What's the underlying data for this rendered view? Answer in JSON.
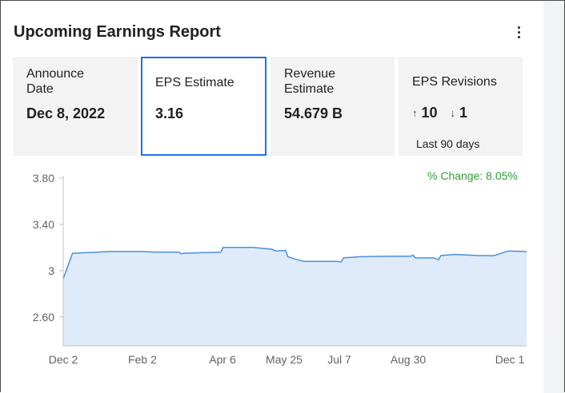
{
  "title": "Upcoming Earnings Report",
  "cards": {
    "announce": {
      "label": "Announce\nDate",
      "line1": "Announce",
      "line2": "Date",
      "value": "Dec 8, 2022"
    },
    "eps": {
      "label": "EPS Estimate",
      "value": "3.16"
    },
    "revenue": {
      "line1": "Revenue",
      "line2": "Estimate",
      "value": "54.679 B"
    },
    "revisions": {
      "label": "EPS Revisions",
      "up_arrow": "↑",
      "up": "10",
      "down_arrow": "↓",
      "down": "1",
      "sub": "Last 90 days"
    }
  },
  "pct_change": "% Change: 8.05%",
  "colors": {
    "accent": "#1a73e8",
    "line": "#4a90e2",
    "fill": "#dfeafb",
    "positive": "#2e9e3a"
  },
  "chart_data": {
    "type": "area",
    "x_ticks": [
      "Dec 2",
      "Feb 2",
      "Apr 6",
      "May 25",
      "Jul 7",
      "Aug 30",
      "Dec 1"
    ],
    "y_ticks": [
      "3.80",
      "3.40",
      "3",
      "2.60"
    ],
    "ylim": [
      2.35,
      3.82
    ],
    "series": [
      {
        "points": [
          [
            0,
            2.93
          ],
          [
            0.02,
            3.15
          ],
          [
            0.1,
            3.165
          ],
          [
            0.17,
            3.165
          ],
          [
            0.2,
            3.16
          ],
          [
            0.25,
            3.16
          ],
          [
            0.255,
            3.145
          ],
          [
            0.26,
            3.15
          ],
          [
            0.34,
            3.16
          ],
          [
            0.345,
            3.2
          ],
          [
            0.38,
            3.2
          ],
          [
            0.41,
            3.2
          ],
          [
            0.45,
            3.185
          ],
          [
            0.46,
            3.17
          ],
          [
            0.48,
            3.175
          ],
          [
            0.485,
            3.12
          ],
          [
            0.5,
            3.1
          ],
          [
            0.52,
            3.08
          ],
          [
            0.59,
            3.08
          ],
          [
            0.6,
            3.075
          ],
          [
            0.605,
            3.11
          ],
          [
            0.64,
            3.12
          ],
          [
            0.7,
            3.125
          ],
          [
            0.75,
            3.125
          ],
          [
            0.755,
            3.135
          ],
          [
            0.76,
            3.11
          ],
          [
            0.8,
            3.11
          ],
          [
            0.81,
            3.095
          ],
          [
            0.815,
            3.13
          ],
          [
            0.845,
            3.14
          ],
          [
            0.9,
            3.13
          ],
          [
            0.93,
            3.13
          ],
          [
            0.96,
            3.17
          ],
          [
            1.0,
            3.165
          ]
        ]
      }
    ]
  }
}
